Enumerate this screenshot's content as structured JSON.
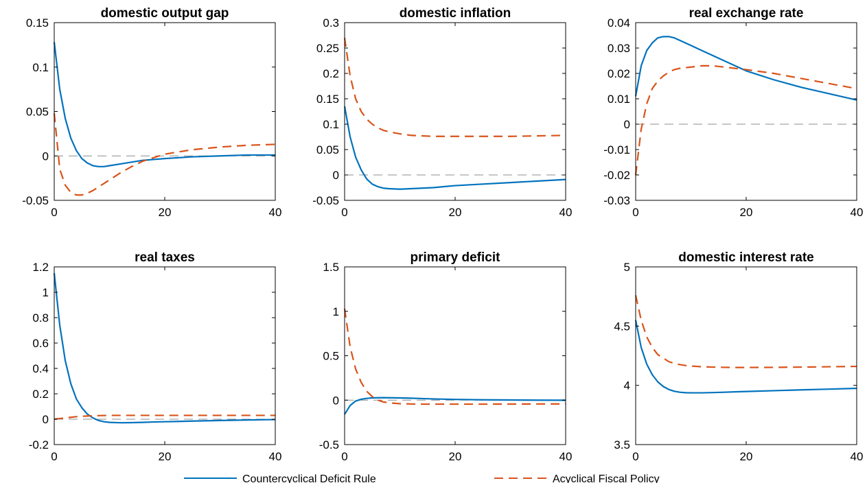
{
  "legend": {
    "placement": "bottom-center",
    "entries": [
      {
        "label": "Countercyclical Deficit Rule",
        "color": "#0072bd",
        "dash": "solid"
      },
      {
        "label": "Acyclical Fiscal Policy",
        "color": "#d95319",
        "dash": "dashed"
      }
    ]
  },
  "chart_data": [
    {
      "type": "line",
      "title": "domestic output gap",
      "xlim": [
        0,
        40
      ],
      "ylim": [
        -0.05,
        0.15
      ],
      "xticks": [
        0,
        20,
        40
      ],
      "yticks": [
        -0.05,
        0,
        0.05,
        0.1,
        0.15
      ],
      "ytick_labels": [
        "-0.05",
        "0",
        "0.05",
        "0.1",
        "0.15"
      ],
      "zero_line": true,
      "x": [
        0,
        1,
        2,
        3,
        4,
        5,
        6,
        7,
        8,
        9,
        10,
        12,
        14,
        16,
        18,
        20,
        25,
        30,
        35,
        40
      ],
      "series": [
        {
          "name": "Countercyclical Deficit Rule",
          "values": [
            0.128,
            0.075,
            0.042,
            0.02,
            0.006,
            -0.003,
            -0.008,
            -0.011,
            -0.012,
            -0.012,
            -0.011,
            -0.009,
            -0.007,
            -0.005,
            -0.004,
            -0.003,
            -0.001,
            0,
            0.001,
            0.001
          ]
        },
        {
          "name": "Acyclical Fiscal Policy",
          "values": [
            0.048,
            -0.015,
            -0.033,
            -0.041,
            -0.044,
            -0.044,
            -0.042,
            -0.039,
            -0.035,
            -0.031,
            -0.027,
            -0.019,
            -0.012,
            -0.006,
            -0.002,
            0.002,
            0.007,
            0.01,
            0.012,
            0.013
          ]
        }
      ]
    },
    {
      "type": "line",
      "title": "domestic inflation",
      "xlim": [
        0,
        40
      ],
      "ylim": [
        -0.05,
        0.3
      ],
      "xticks": [
        0,
        20,
        40
      ],
      "yticks": [
        -0.05,
        0,
        0.05,
        0.1,
        0.15,
        0.2,
        0.25,
        0.3
      ],
      "ytick_labels": [
        "-0.05",
        "0",
        "0.05",
        "0.1",
        "0.15",
        "0.2",
        "0.25",
        "0.3"
      ],
      "zero_line": true,
      "x": [
        0,
        1,
        2,
        3,
        4,
        5,
        6,
        7,
        8,
        10,
        12,
        14,
        16,
        18,
        20,
        25,
        30,
        35,
        40
      ],
      "series": [
        {
          "name": "Countercyclical Deficit Rule",
          "values": [
            0.135,
            0.075,
            0.035,
            0.01,
            -0.008,
            -0.018,
            -0.023,
            -0.026,
            -0.027,
            -0.028,
            -0.027,
            -0.026,
            -0.025,
            -0.023,
            -0.021,
            -0.018,
            -0.015,
            -0.012,
            -0.009
          ]
        },
        {
          "name": "Acyclical Fiscal Policy",
          "values": [
            0.27,
            0.195,
            0.15,
            0.125,
            0.11,
            0.1,
            0.093,
            0.088,
            0.085,
            0.081,
            0.078,
            0.077,
            0.076,
            0.076,
            0.076,
            0.076,
            0.076,
            0.077,
            0.078
          ]
        }
      ]
    },
    {
      "type": "line",
      "title": "real exchange rate",
      "xlim": [
        0,
        40
      ],
      "ylim": [
        -0.03,
        0.04
      ],
      "xticks": [
        0,
        20,
        40
      ],
      "yticks": [
        -0.03,
        -0.02,
        -0.01,
        0,
        0.01,
        0.02,
        0.03,
        0.04
      ],
      "ytick_labels": [
        "-0.03",
        "-0.02",
        "-0.01",
        "0",
        "0.01",
        "0.02",
        "0.03",
        "0.04"
      ],
      "zero_line": true,
      "x": [
        0,
        1,
        2,
        3,
        4,
        5,
        6,
        7,
        8,
        10,
        12,
        14,
        16,
        18,
        20,
        25,
        30,
        35,
        40
      ],
      "series": [
        {
          "name": "Countercyclical Deficit Rule",
          "values": [
            0.011,
            0.023,
            0.029,
            0.032,
            0.034,
            0.0345,
            0.0345,
            0.034,
            0.033,
            0.031,
            0.029,
            0.027,
            0.025,
            0.023,
            0.021,
            0.0175,
            0.0145,
            0.012,
            0.0095
          ]
        },
        {
          "name": "Acyclical Fiscal Policy",
          "values": [
            -0.02,
            -0.002,
            0.008,
            0.014,
            0.017,
            0.019,
            0.0205,
            0.0215,
            0.022,
            0.0225,
            0.023,
            0.023,
            0.0225,
            0.022,
            0.0215,
            0.02,
            0.018,
            0.016,
            0.014
          ]
        }
      ]
    },
    {
      "type": "line",
      "title": "real taxes",
      "xlim": [
        0,
        40
      ],
      "ylim": [
        -0.2,
        1.2
      ],
      "xticks": [
        0,
        20,
        40
      ],
      "yticks": [
        -0.2,
        0,
        0.2,
        0.4,
        0.6,
        0.8,
        1,
        1.2
      ],
      "ytick_labels": [
        "-0.2",
        "0",
        "0.2",
        "0.4",
        "0.6",
        "0.8",
        "1",
        "1.2"
      ],
      "zero_line": true,
      "x": [
        0,
        1,
        2,
        3,
        4,
        5,
        6,
        7,
        8,
        9,
        10,
        12,
        14,
        16,
        18,
        20,
        25,
        30,
        35,
        40
      ],
      "series": [
        {
          "name": "Countercyclical Deficit Rule",
          "values": [
            1.15,
            0.74,
            0.46,
            0.28,
            0.16,
            0.09,
            0.04,
            0.01,
            -0.01,
            -0.02,
            -0.025,
            -0.028,
            -0.027,
            -0.025,
            -0.022,
            -0.02,
            -0.015,
            -0.01,
            -0.006,
            -0.003
          ]
        },
        {
          "name": "Acyclical Fiscal Policy",
          "values": [
            0.0,
            0.005,
            0.01,
            0.015,
            0.02,
            0.023,
            0.025,
            0.027,
            0.028,
            0.029,
            0.03,
            0.03,
            0.03,
            0.03,
            0.03,
            0.03,
            0.03,
            0.03,
            0.03,
            0.03
          ]
        }
      ]
    },
    {
      "type": "line",
      "title": "primary deficit",
      "xlim": [
        0,
        40
      ],
      "ylim": [
        -0.5,
        1.5
      ],
      "xticks": [
        0,
        20,
        40
      ],
      "yticks": [
        -0.5,
        0,
        0.5,
        1,
        1.5
      ],
      "ytick_labels": [
        "-0.5",
        "0",
        "0.5",
        "1",
        "1.5"
      ],
      "zero_line": true,
      "x": [
        0,
        1,
        2,
        3,
        4,
        5,
        6,
        7,
        8,
        9,
        10,
        12,
        14,
        16,
        18,
        20,
        25,
        30,
        35,
        40
      ],
      "series": [
        {
          "name": "Countercyclical Deficit Rule",
          "values": [
            -0.16,
            -0.06,
            -0.01,
            0.01,
            0.02,
            0.025,
            0.027,
            0.028,
            0.027,
            0.026,
            0.025,
            0.022,
            0.018,
            0.014,
            0.011,
            0.008,
            0.004,
            0.002,
            0.0,
            -0.001
          ]
        },
        {
          "name": "Acyclical Fiscal Policy",
          "values": [
            1.03,
            0.6,
            0.35,
            0.2,
            0.1,
            0.04,
            0.0,
            -0.02,
            -0.03,
            -0.035,
            -0.04,
            -0.043,
            -0.045,
            -0.045,
            -0.045,
            -0.045,
            -0.045,
            -0.044,
            -0.043,
            -0.042
          ]
        }
      ]
    },
    {
      "type": "line",
      "title": "domestic interest rate",
      "xlim": [
        0,
        40
      ],
      "ylim": [
        3.5,
        5
      ],
      "xticks": [
        0,
        20,
        40
      ],
      "yticks": [
        3.5,
        4,
        4.5,
        5
      ],
      "ytick_labels": [
        "3.5",
        "4",
        "4.5",
        "5"
      ],
      "zero_line": false,
      "x": [
        0,
        1,
        2,
        3,
        4,
        5,
        6,
        7,
        8,
        9,
        10,
        12,
        14,
        16,
        18,
        20,
        25,
        30,
        35,
        40
      ],
      "series": [
        {
          "name": "Countercyclical Deficit Rule",
          "values": [
            4.55,
            4.32,
            4.18,
            4.09,
            4.03,
            3.99,
            3.965,
            3.95,
            3.942,
            3.938,
            3.937,
            3.937,
            3.939,
            3.942,
            3.945,
            3.948,
            3.955,
            3.962,
            3.968,
            3.975
          ]
        },
        {
          "name": "Acyclical Fiscal Policy",
          "values": [
            4.76,
            4.55,
            4.41,
            4.32,
            4.26,
            4.23,
            4.2,
            4.185,
            4.175,
            4.168,
            4.163,
            4.157,
            4.154,
            4.152,
            4.151,
            4.151,
            4.152,
            4.154,
            4.157,
            4.16
          ]
        }
      ]
    }
  ]
}
